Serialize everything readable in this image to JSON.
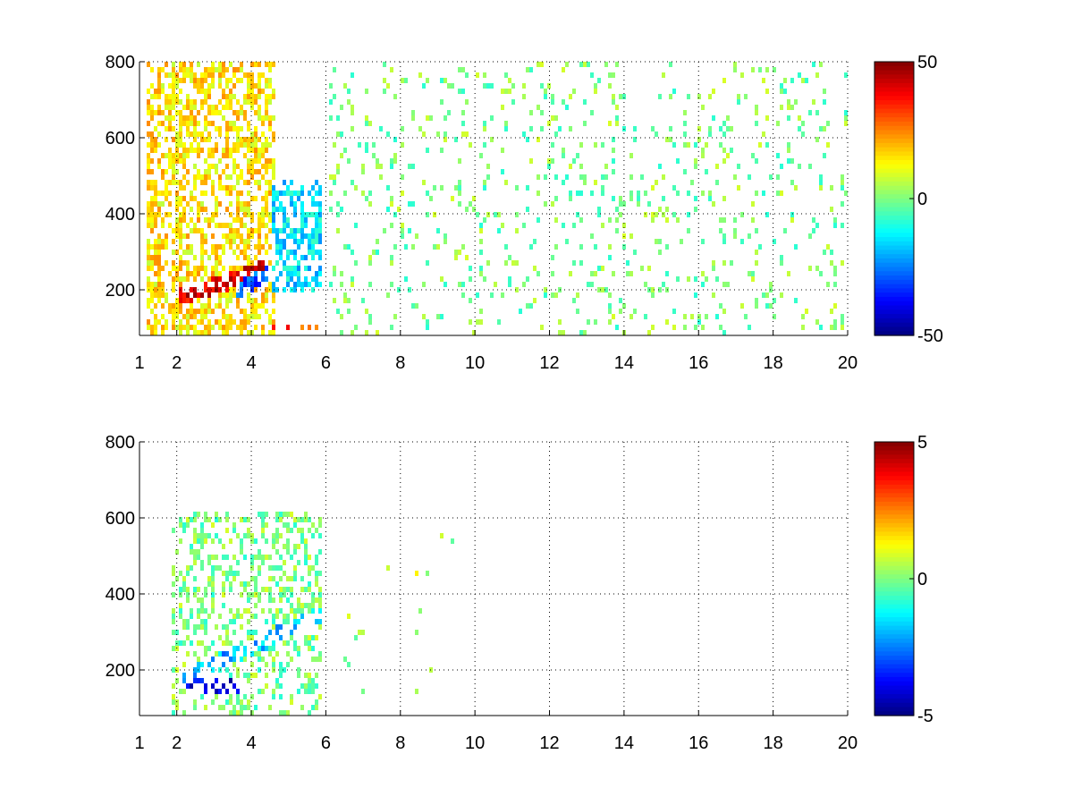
{
  "chart_data": [
    {
      "type": "heatmap",
      "title": "",
      "xlabel": "",
      "ylabel": "",
      "xlim": [
        1,
        20
      ],
      "ylim": [
        80,
        800
      ],
      "x_ticks": [
        1,
        2,
        4,
        6,
        8,
        10,
        12,
        14,
        16,
        18,
        20
      ],
      "y_ticks": [
        200,
        400,
        600,
        800
      ],
      "grid": true,
      "colormap": "jet",
      "clim": [
        -50,
        50
      ],
      "colorbar_ticks": [
        -50,
        0,
        50
      ],
      "features": [
        {
          "description": "dense warm-positive region",
          "x_range": [
            1.1,
            4.6
          ],
          "y_range": [
            80,
            800
          ],
          "value": 15
        },
        {
          "description": "strong positive ridge",
          "x_range": [
            2.0,
            4.3
          ],
          "y_start": 185,
          "y_end": 260,
          "value": 40
        },
        {
          "description": "negative ridge",
          "x_range": [
            3.5,
            5.8
          ],
          "y_start": 200,
          "y_end": 320,
          "value": -30
        },
        {
          "description": "negative band",
          "x_range": [
            4.5,
            5.8
          ],
          "y_range": [
            200,
            500
          ],
          "value": -15
        },
        {
          "description": "positive strip near floor",
          "x_range": [
            4.5,
            5.8
          ],
          "y_range": [
            95,
            115
          ],
          "value": 30
        },
        {
          "description": "sparse scattered near-zero values",
          "x_range": [
            6,
            20
          ],
          "y_range": [
            80,
            800
          ],
          "value": 0
        }
      ]
    },
    {
      "type": "heatmap",
      "title": "",
      "xlabel": "",
      "ylabel": "",
      "xlim": [
        1,
        20
      ],
      "ylim": [
        80,
        800
      ],
      "x_ticks": [
        1,
        2,
        4,
        6,
        8,
        10,
        12,
        14,
        16,
        18,
        20
      ],
      "y_ticks": [
        200,
        400,
        600,
        800
      ],
      "grid": true,
      "colormap": "jet",
      "clim": [
        -5,
        5
      ],
      "colorbar_ticks": [
        -5,
        0,
        5
      ],
      "features": [
        {
          "description": "mixed near-zero region",
          "x_range": [
            1.8,
            5.8
          ],
          "y_range": [
            80,
            620
          ],
          "value": 0
        },
        {
          "description": "negative ridge",
          "x_range": [
            2.0,
            5.8
          ],
          "y_start": 180,
          "y_end": 350,
          "value": -2
        },
        {
          "description": "strong negative patch",
          "x_range": [
            2.2,
            3.8
          ],
          "y_range": [
            150,
            180
          ],
          "value": -4
        },
        {
          "description": "isolated points",
          "x_range": [
            6.3,
            10.3
          ],
          "y_range": [
            140,
            600
          ],
          "value": 0.5
        }
      ]
    }
  ]
}
